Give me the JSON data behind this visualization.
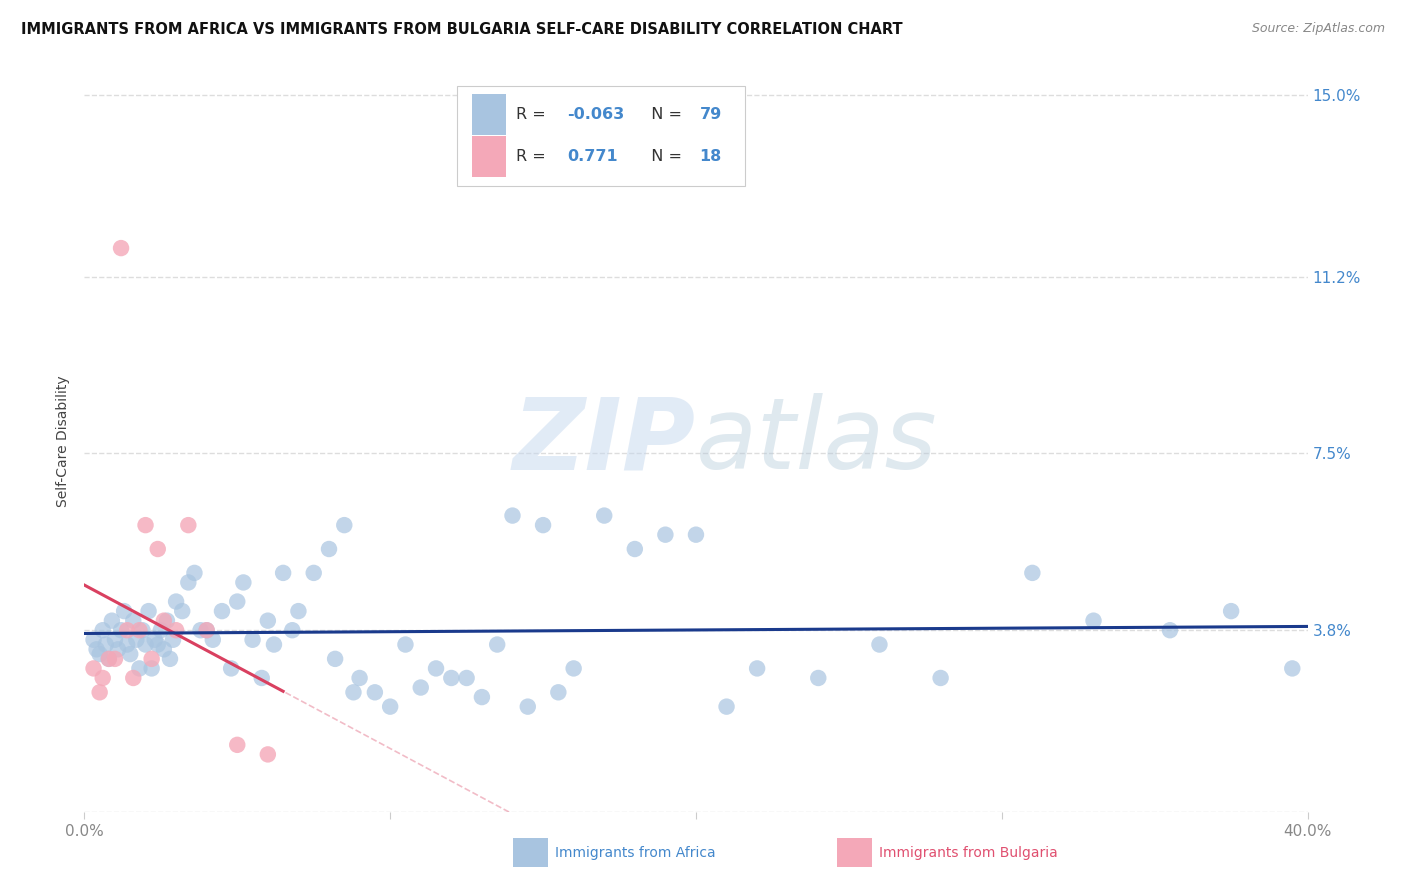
{
  "title": "IMMIGRANTS FROM AFRICA VS IMMIGRANTS FROM BULGARIA SELF-CARE DISABILITY CORRELATION CHART",
  "source": "Source: ZipAtlas.com",
  "xlabel_africa": "Immigrants from Africa",
  "xlabel_bulgaria": "Immigrants from Bulgaria",
  "ylabel": "Self-Care Disability",
  "xlim": [
    0.0,
    0.4
  ],
  "ylim": [
    0.0,
    0.155
  ],
  "yticks": [
    0.0,
    0.038,
    0.075,
    0.112,
    0.15
  ],
  "ytick_labels": [
    "",
    "3.8%",
    "7.5%",
    "11.2%",
    "15.0%"
  ],
  "xticks": [
    0.0,
    0.1,
    0.2,
    0.3,
    0.4
  ],
  "xtick_labels": [
    "0.0%",
    "",
    "",
    "",
    "40.0%"
  ],
  "r_africa": -0.063,
  "n_africa": 79,
  "r_bulgaria": 0.771,
  "n_bulgaria": 18,
  "background_color": "#ffffff",
  "grid_color": "#dddddd",
  "africa_color": "#a8c4e0",
  "africa_line_color": "#1a3a8c",
  "bulgaria_color": "#f4a8b8",
  "bulgaria_line_color": "#d94060",
  "watermark_zip": "ZIP",
  "watermark_atlas": "atlas",
  "africa_points_x": [
    0.003,
    0.004,
    0.005,
    0.006,
    0.007,
    0.008,
    0.009,
    0.01,
    0.011,
    0.012,
    0.013,
    0.014,
    0.015,
    0.016,
    0.017,
    0.018,
    0.019,
    0.02,
    0.021,
    0.022,
    0.023,
    0.024,
    0.025,
    0.026,
    0.027,
    0.028,
    0.029,
    0.03,
    0.032,
    0.034,
    0.036,
    0.038,
    0.04,
    0.042,
    0.045,
    0.048,
    0.05,
    0.052,
    0.055,
    0.058,
    0.06,
    0.062,
    0.065,
    0.068,
    0.07,
    0.075,
    0.08,
    0.082,
    0.085,
    0.088,
    0.09,
    0.095,
    0.1,
    0.105,
    0.11,
    0.115,
    0.12,
    0.125,
    0.13,
    0.135,
    0.14,
    0.145,
    0.15,
    0.155,
    0.16,
    0.17,
    0.18,
    0.19,
    0.2,
    0.21,
    0.22,
    0.24,
    0.26,
    0.28,
    0.31,
    0.33,
    0.355,
    0.375,
    0.395
  ],
  "africa_points_y": [
    0.036,
    0.034,
    0.033,
    0.038,
    0.035,
    0.032,
    0.04,
    0.036,
    0.034,
    0.038,
    0.042,
    0.035,
    0.033,
    0.04,
    0.036,
    0.03,
    0.038,
    0.035,
    0.042,
    0.03,
    0.036,
    0.035,
    0.038,
    0.034,
    0.04,
    0.032,
    0.036,
    0.044,
    0.042,
    0.048,
    0.05,
    0.038,
    0.038,
    0.036,
    0.042,
    0.03,
    0.044,
    0.048,
    0.036,
    0.028,
    0.04,
    0.035,
    0.05,
    0.038,
    0.042,
    0.05,
    0.055,
    0.032,
    0.06,
    0.025,
    0.028,
    0.025,
    0.022,
    0.035,
    0.026,
    0.03,
    0.028,
    0.028,
    0.024,
    0.035,
    0.062,
    0.022,
    0.06,
    0.025,
    0.03,
    0.062,
    0.055,
    0.058,
    0.058,
    0.022,
    0.03,
    0.028,
    0.035,
    0.028,
    0.05,
    0.04,
    0.038,
    0.042,
    0.03
  ],
  "bulgaria_points_x": [
    0.003,
    0.005,
    0.006,
    0.008,
    0.01,
    0.012,
    0.014,
    0.016,
    0.018,
    0.02,
    0.022,
    0.024,
    0.026,
    0.03,
    0.034,
    0.04,
    0.05,
    0.06
  ],
  "bulgaria_points_y": [
    0.03,
    0.025,
    0.028,
    0.032,
    0.032,
    0.118,
    0.038,
    0.028,
    0.038,
    0.06,
    0.032,
    0.055,
    0.04,
    0.038,
    0.06,
    0.038,
    0.014,
    0.012
  ]
}
